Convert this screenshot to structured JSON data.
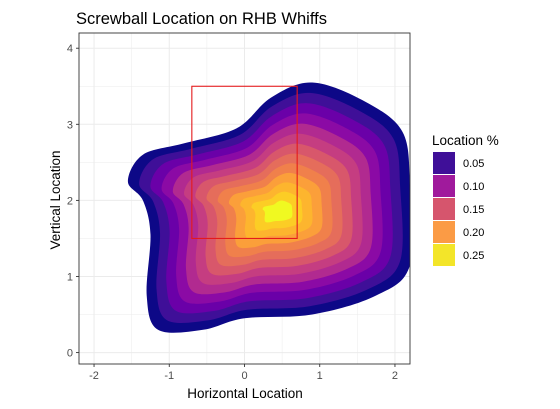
{
  "chart_data": {
    "type": "heatmap",
    "subtype": "2d-density-contour",
    "title": "Screwball Location on RHB Whiffs",
    "xlabel": "Horizontal Location",
    "ylabel": "Vertical Location",
    "xlim": [
      -2.2,
      2.2
    ],
    "ylim": [
      -0.15,
      4.2
    ],
    "x_ticks": [
      "-2",
      "-1",
      "0",
      "1",
      "2"
    ],
    "x_tick_values": [
      -2,
      -1,
      0,
      1,
      2
    ],
    "y_ticks": [
      "0",
      "1",
      "2",
      "3",
      "4"
    ],
    "y_tick_values": [
      0,
      1,
      2,
      3,
      4
    ],
    "grid": true,
    "legend_position": "right",
    "legend": {
      "title": "Location %",
      "entries": [
        {
          "label": "0.05",
          "color": "#3f0f98"
        },
        {
          "label": "0.10",
          "color": "#a01a9c"
        },
        {
          "label": "0.15",
          "color": "#d6556d"
        },
        {
          "label": "0.20",
          "color": "#fb9b45"
        },
        {
          "label": "0.25",
          "color": "#f3e529"
        }
      ]
    },
    "density_peak": {
      "x": 0.45,
      "y": 1.85
    },
    "strike_zone": {
      "x_min": -0.7,
      "x_max": 0.7,
      "y_min": 1.5,
      "y_max": 3.5,
      "color": "#e41a1c"
    },
    "fill_levels": [
      {
        "color": "#0d0887"
      },
      {
        "color": "#3f0f98"
      },
      {
        "color": "#6a00a8"
      },
      {
        "color": "#8b0aa5"
      },
      {
        "color": "#b12a90"
      },
      {
        "color": "#c53d81"
      },
      {
        "color": "#d8576b"
      },
      {
        "color": "#e56d5b"
      },
      {
        "color": "#f0804b"
      },
      {
        "color": "#fb9f3a"
      },
      {
        "color": "#fdb52e"
      },
      {
        "color": "#fccd25"
      },
      {
        "color": "#f0f921"
      }
    ]
  }
}
